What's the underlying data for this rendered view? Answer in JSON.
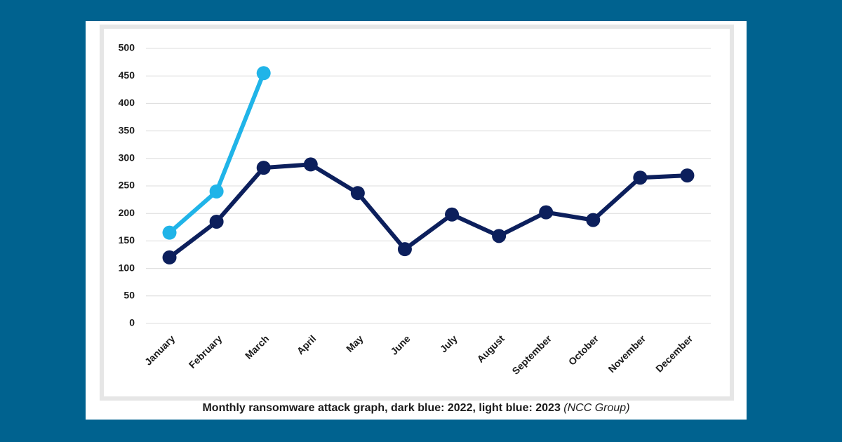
{
  "chart_data": {
    "type": "line",
    "categories": [
      "January",
      "February",
      "March",
      "April",
      "May",
      "June",
      "July",
      "August",
      "September",
      "October",
      "November",
      "December"
    ],
    "series": [
      {
        "color": "#0c1f5c",
        "values": [
          120,
          185,
          283,
          289,
          237,
          135,
          198,
          159,
          202,
          188,
          265,
          269
        ]
      },
      {
        "color": "#20b4e8",
        "values": [
          165,
          240,
          455,
          null,
          null,
          null,
          null,
          null,
          null,
          null,
          null,
          null
        ]
      }
    ],
    "ylim": [
      0,
      500
    ],
    "yticks": [
      0,
      50,
      100,
      150,
      200,
      250,
      300,
      350,
      400,
      450,
      500
    ],
    "grid": true,
    "caption": "Monthly ransomware attack graph, dark blue: 2022, light blue: 2023",
    "caption_source": "(NCC Group)"
  }
}
